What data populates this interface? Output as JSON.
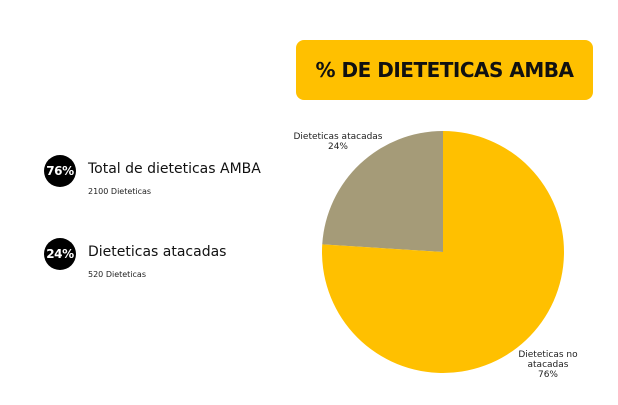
{
  "title": "% DE DIETETICAS AMBA",
  "colors": {
    "accent": "#FFC000",
    "muted": "#A59B78",
    "badge": "#000000",
    "badge_text": "#FFFFFF"
  },
  "stats": [
    {
      "percent": "76%",
      "title": "Total de dieteticas AMBA",
      "subtitle": "2100 Dieteticas"
    },
    {
      "percent": "24%",
      "title": "Dieteticas atacadas",
      "subtitle": "520 Dieteticas"
    }
  ],
  "chart_data": {
    "type": "pie",
    "title": "",
    "slices": [
      {
        "label_lines": [
          "Dieteticas atacadas",
          "24%"
        ],
        "value": 24,
        "color": "#A59B78"
      },
      {
        "label_lines": [
          "Dieteticas no",
          "atacadas",
          "76%"
        ],
        "value": 76,
        "color": "#FFC000"
      }
    ]
  }
}
